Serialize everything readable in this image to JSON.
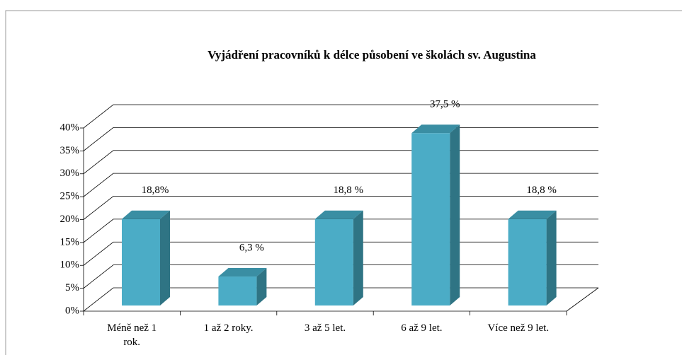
{
  "chart_data": {
    "type": "bar3d",
    "title": "Vyjádření pracovníků k délce působení ve školách sv. Augustina",
    "categories": [
      "Méně než 1 rok.",
      "1 až 2 roky.",
      "3 až 5 let.",
      "6 až 9 let.",
      "Více než 9 let."
    ],
    "values": [
      18.8,
      6.3,
      18.8,
      37.5,
      18.8
    ],
    "value_labels": [
      "18,8%",
      "6,3 %",
      "18,8 %",
      "37,5 %",
      "18,8 %"
    ],
    "color": "#4bacc6",
    "ylim": [
      0,
      40
    ],
    "yticks": [
      {
        "value": 0,
        "label": "0%"
      },
      {
        "value": 5,
        "label": "5%"
      },
      {
        "value": 10,
        "label": "10%"
      },
      {
        "value": 15,
        "label": "15%"
      },
      {
        "value": 20,
        "label": "20%"
      },
      {
        "value": 25,
        "label": "25%"
      },
      {
        "value": 30,
        "label": "30%"
      },
      {
        "value": 35,
        "label": "35%"
      },
      {
        "value": 40,
        "label": "40%"
      }
    ],
    "grid": true
  }
}
